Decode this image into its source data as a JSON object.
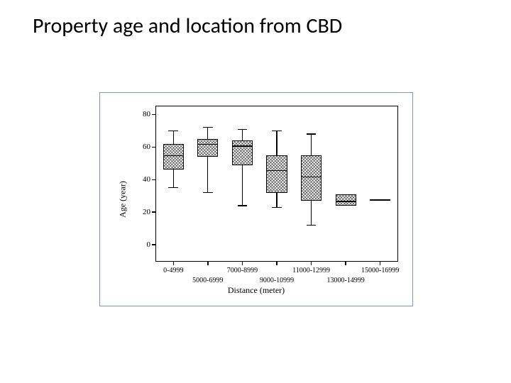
{
  "title": "Property age and location from CBD",
  "chart": {
    "type": "boxplot",
    "ylabel": "Age (year)",
    "xlabel": "Distance (meter)",
    "ylim": [
      -10,
      85
    ],
    "yticks": [
      0,
      20,
      40,
      60,
      80
    ],
    "background_color": "#ffffff",
    "border_color": "#7a99b8",
    "axis_color": "#000000",
    "title_fontsize": 30,
    "axis_label_fontsize": 12,
    "tick_fontsize": 11,
    "x_tick_fontsize": 10,
    "box_border_color": "#000000",
    "box_fill_pattern": "crosshatch",
    "box_fill_color": "#404040",
    "categories": [
      {
        "label": "0-4999",
        "row": 1,
        "q1": 46,
        "median": 55,
        "q3": 62,
        "lo": 35,
        "hi": 70
      },
      {
        "label": "5000-6999",
        "row": 2,
        "q1": 54,
        "median": 62,
        "q3": 65,
        "lo": 32,
        "hi": 72
      },
      {
        "label": "7000-8999",
        "row": 1,
        "q1": 49,
        "median": 61,
        "q3": 64,
        "lo": 24,
        "hi": 71
      },
      {
        "label": "9000-10999",
        "row": 2,
        "q1": 32,
        "median": 46,
        "q3": 55,
        "lo": 23,
        "hi": 70
      },
      {
        "label": "11000-12999",
        "row": 1,
        "q1": 27,
        "median": 42,
        "q3": 55,
        "lo": 12,
        "hi": 68
      },
      {
        "label": "13000-14999",
        "row": 2,
        "q1": 24,
        "median": 27,
        "q3": 31,
        "lo": 24,
        "hi": 31
      },
      {
        "label": "15000-16999",
        "row": 1,
        "q1": 28,
        "median": 28,
        "q3": 28,
        "lo": 28,
        "hi": 28
      }
    ],
    "box_rel_width": 0.6,
    "cap_rel_width": 0.28
  }
}
